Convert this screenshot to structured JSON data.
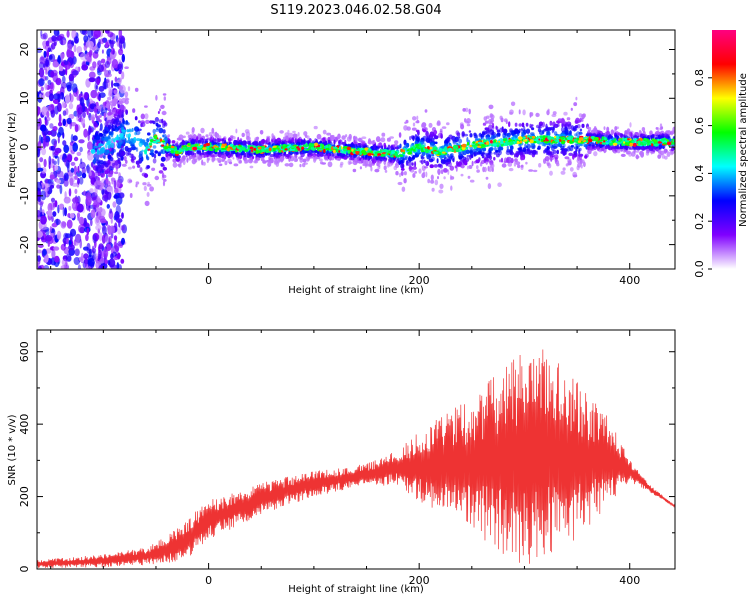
{
  "title": "S119.2023.046.02.58.G04",
  "chart_data": [
    {
      "type": "heatmap",
      "xlabel": "Height of straight line (km)",
      "ylabel": "Frequency (Hz)",
      "xlim": [
        -163,
        443
      ],
      "ylim": [
        -25,
        24
      ],
      "xticks": [
        0,
        200,
        400
      ],
      "yticks": [
        -20,
        -10,
        0,
        10,
        20
      ],
      "colorbar": {
        "label": "Normalized spectral amplitude",
        "range": [
          0,
          1
        ],
        "ticks": [
          "0.0",
          "0.2",
          "0.4",
          "0.6",
          "0.8"
        ],
        "tick_values": [
          0,
          0.2,
          0.4,
          0.6,
          0.8
        ],
        "colormap": [
          "#ffffff",
          "#8000ff",
          "#0000ff",
          "#00ffff",
          "#00ff00",
          "#ffff00",
          "#ff0000",
          "#ff0080"
        ]
      },
      "ridge": {
        "x": [
          -150,
          -120,
          -100,
          -90,
          -80,
          -70,
          -60,
          -50,
          -40,
          -30,
          -20,
          0,
          50,
          100,
          150,
          180,
          200,
          220,
          250,
          280,
          300,
          350,
          400,
          443
        ],
        "y": [
          -3,
          -2,
          0,
          1,
          3,
          2,
          -1,
          2,
          0,
          -1,
          0,
          0,
          -0.5,
          0,
          -1,
          -1.5,
          0,
          -1,
          0.5,
          1,
          1.5,
          1.5,
          1,
          1
        ]
      }
    },
    {
      "type": "line",
      "xlabel": "Height of straight line (km)",
      "ylabel": "SNR (10 * v/v)",
      "xlim": [
        -163,
        443
      ],
      "ylim": [
        0,
        660
      ],
      "xticks": [
        0,
        200,
        400
      ],
      "yticks": [
        0,
        200,
        400,
        600
      ],
      "series": [
        {
          "color": "#ee3333",
          "envelope_x": [
            -163,
            -100,
            -60,
            -40,
            -20,
            0,
            50,
            100,
            150,
            180,
            200,
            250,
            280,
            300,
            320,
            350,
            380,
            400,
            420,
            443
          ],
          "upper": [
            25,
            40,
            60,
            90,
            140,
            190,
            240,
            270,
            290,
            330,
            380,
            480,
            560,
            600,
            620,
            520,
            420,
            300,
            230,
            175
          ],
          "lower": [
            2,
            5,
            10,
            15,
            30,
            80,
            150,
            200,
            230,
            230,
            180,
            100,
            40,
            10,
            20,
            80,
            180,
            240,
            210,
            170
          ]
        }
      ]
    }
  ]
}
